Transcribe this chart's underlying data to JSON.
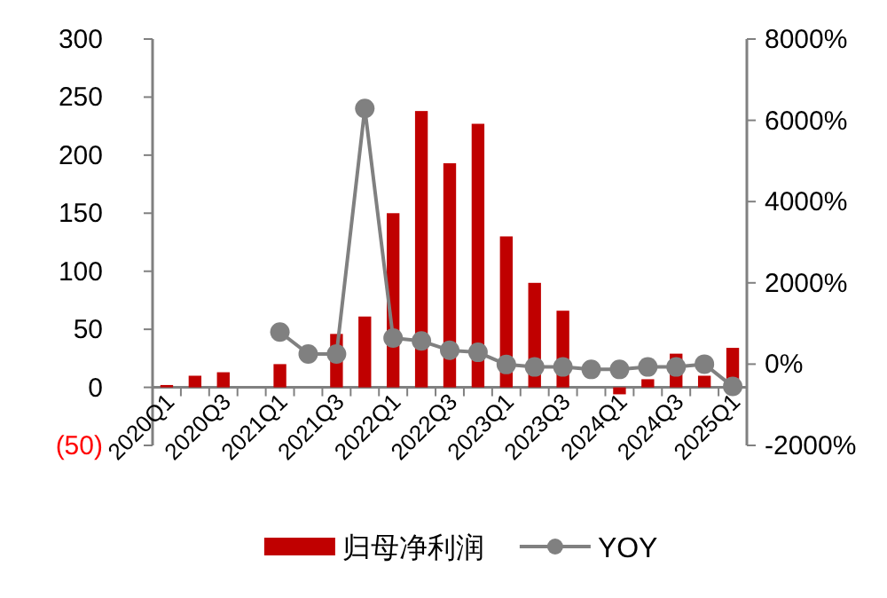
{
  "chart_data": {
    "type": "bar",
    "categories": [
      "2020Q1",
      null,
      "2020Q3",
      null,
      "2021Q1",
      null,
      "2021Q3",
      null,
      "2022Q1",
      null,
      "2022Q3",
      null,
      "2023Q1",
      null,
      "2023Q3",
      null,
      "2024Q1",
      null,
      "2024Q3",
      null,
      "2025Q1"
    ],
    "series": [
      {
        "name": "归母净利润",
        "color": "#c00000",
        "values": [
          2,
          10,
          13,
          0,
          20,
          null,
          46,
          61,
          150,
          238,
          193,
          227,
          130,
          90,
          66,
          null,
          -6,
          7,
          29,
          10,
          34
        ]
      },
      {
        "name": "YOY",
        "type": "line",
        "axis": "y2",
        "color": "#808080",
        "marker": "circle",
        "values": [
          null,
          null,
          null,
          null,
          790,
          250,
          250,
          6290,
          640,
          570,
          340,
          290,
          -10,
          -70,
          -70,
          -130,
          -130,
          -70,
          -70,
          0,
          -550
        ]
      }
    ],
    "ylim": [
      -50,
      300
    ],
    "yticks": [
      {
        "value": -50,
        "label": "(50)"
      },
      0,
      50,
      100,
      150,
      200,
      250,
      300
    ],
    "y2lim": [
      -2000,
      8000
    ],
    "y2ticks": [
      {
        "value": -2000,
        "label": "-2000%"
      },
      {
        "value": 0,
        "label": "0%"
      },
      {
        "value": 2000,
        "label": "2000%"
      },
      {
        "value": 4000,
        "label": "4000%"
      },
      {
        "value": 6000,
        "label": "6000%"
      },
      {
        "value": 8000,
        "label": "8000%"
      }
    ],
    "grid": false,
    "legend": "bottom"
  }
}
